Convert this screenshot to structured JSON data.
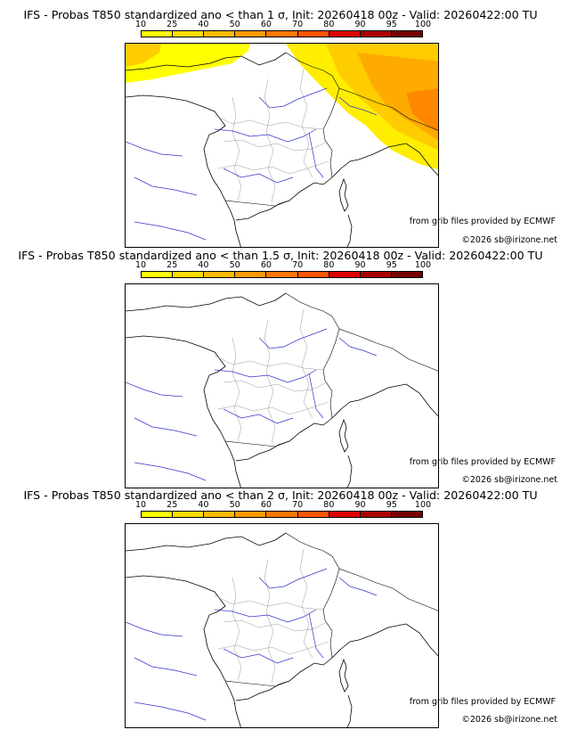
{
  "scale": {
    "ticks": [
      "10",
      "25",
      "40",
      "50",
      "60",
      "70",
      "80",
      "90",
      "95",
      "100"
    ],
    "colors": [
      "#ffff00",
      "#ffdd00",
      "#ffbb00",
      "#ff9900",
      "#ff7700",
      "#ff5500",
      "#dd0000",
      "#aa0000",
      "#770000"
    ]
  },
  "colors": {
    "river": "#3333cc",
    "border": "#999999",
    "coast": "#000000",
    "frame": "#000000"
  },
  "panels": [
    {
      "title": "IFS - Probas T850  standardized ano < than 1 σ, Init: 20260418 00z - Valid: 20260422:00 TU",
      "source": "from grib files provided by ECMWF",
      "copyright": "©2026 sb@irizone.net",
      "has_shading": true
    },
    {
      "title": "IFS - Probas T850  standardized ano < than 1.5 σ, Init: 20260418 00z - Valid: 20260422:00 TU",
      "source": "from grib files provided by ECMWF",
      "copyright": "©2026 sb@irizone.net",
      "has_shading": false
    },
    {
      "title": "IFS - Probas T850  standardized ano < than 2 σ, Init: 20260418 00z - Valid: 20260422:00 TU",
      "source": "from grib files provided by ECMWF",
      "copyright": "©2026 sb@irizone.net",
      "has_shading": false
    }
  ]
}
